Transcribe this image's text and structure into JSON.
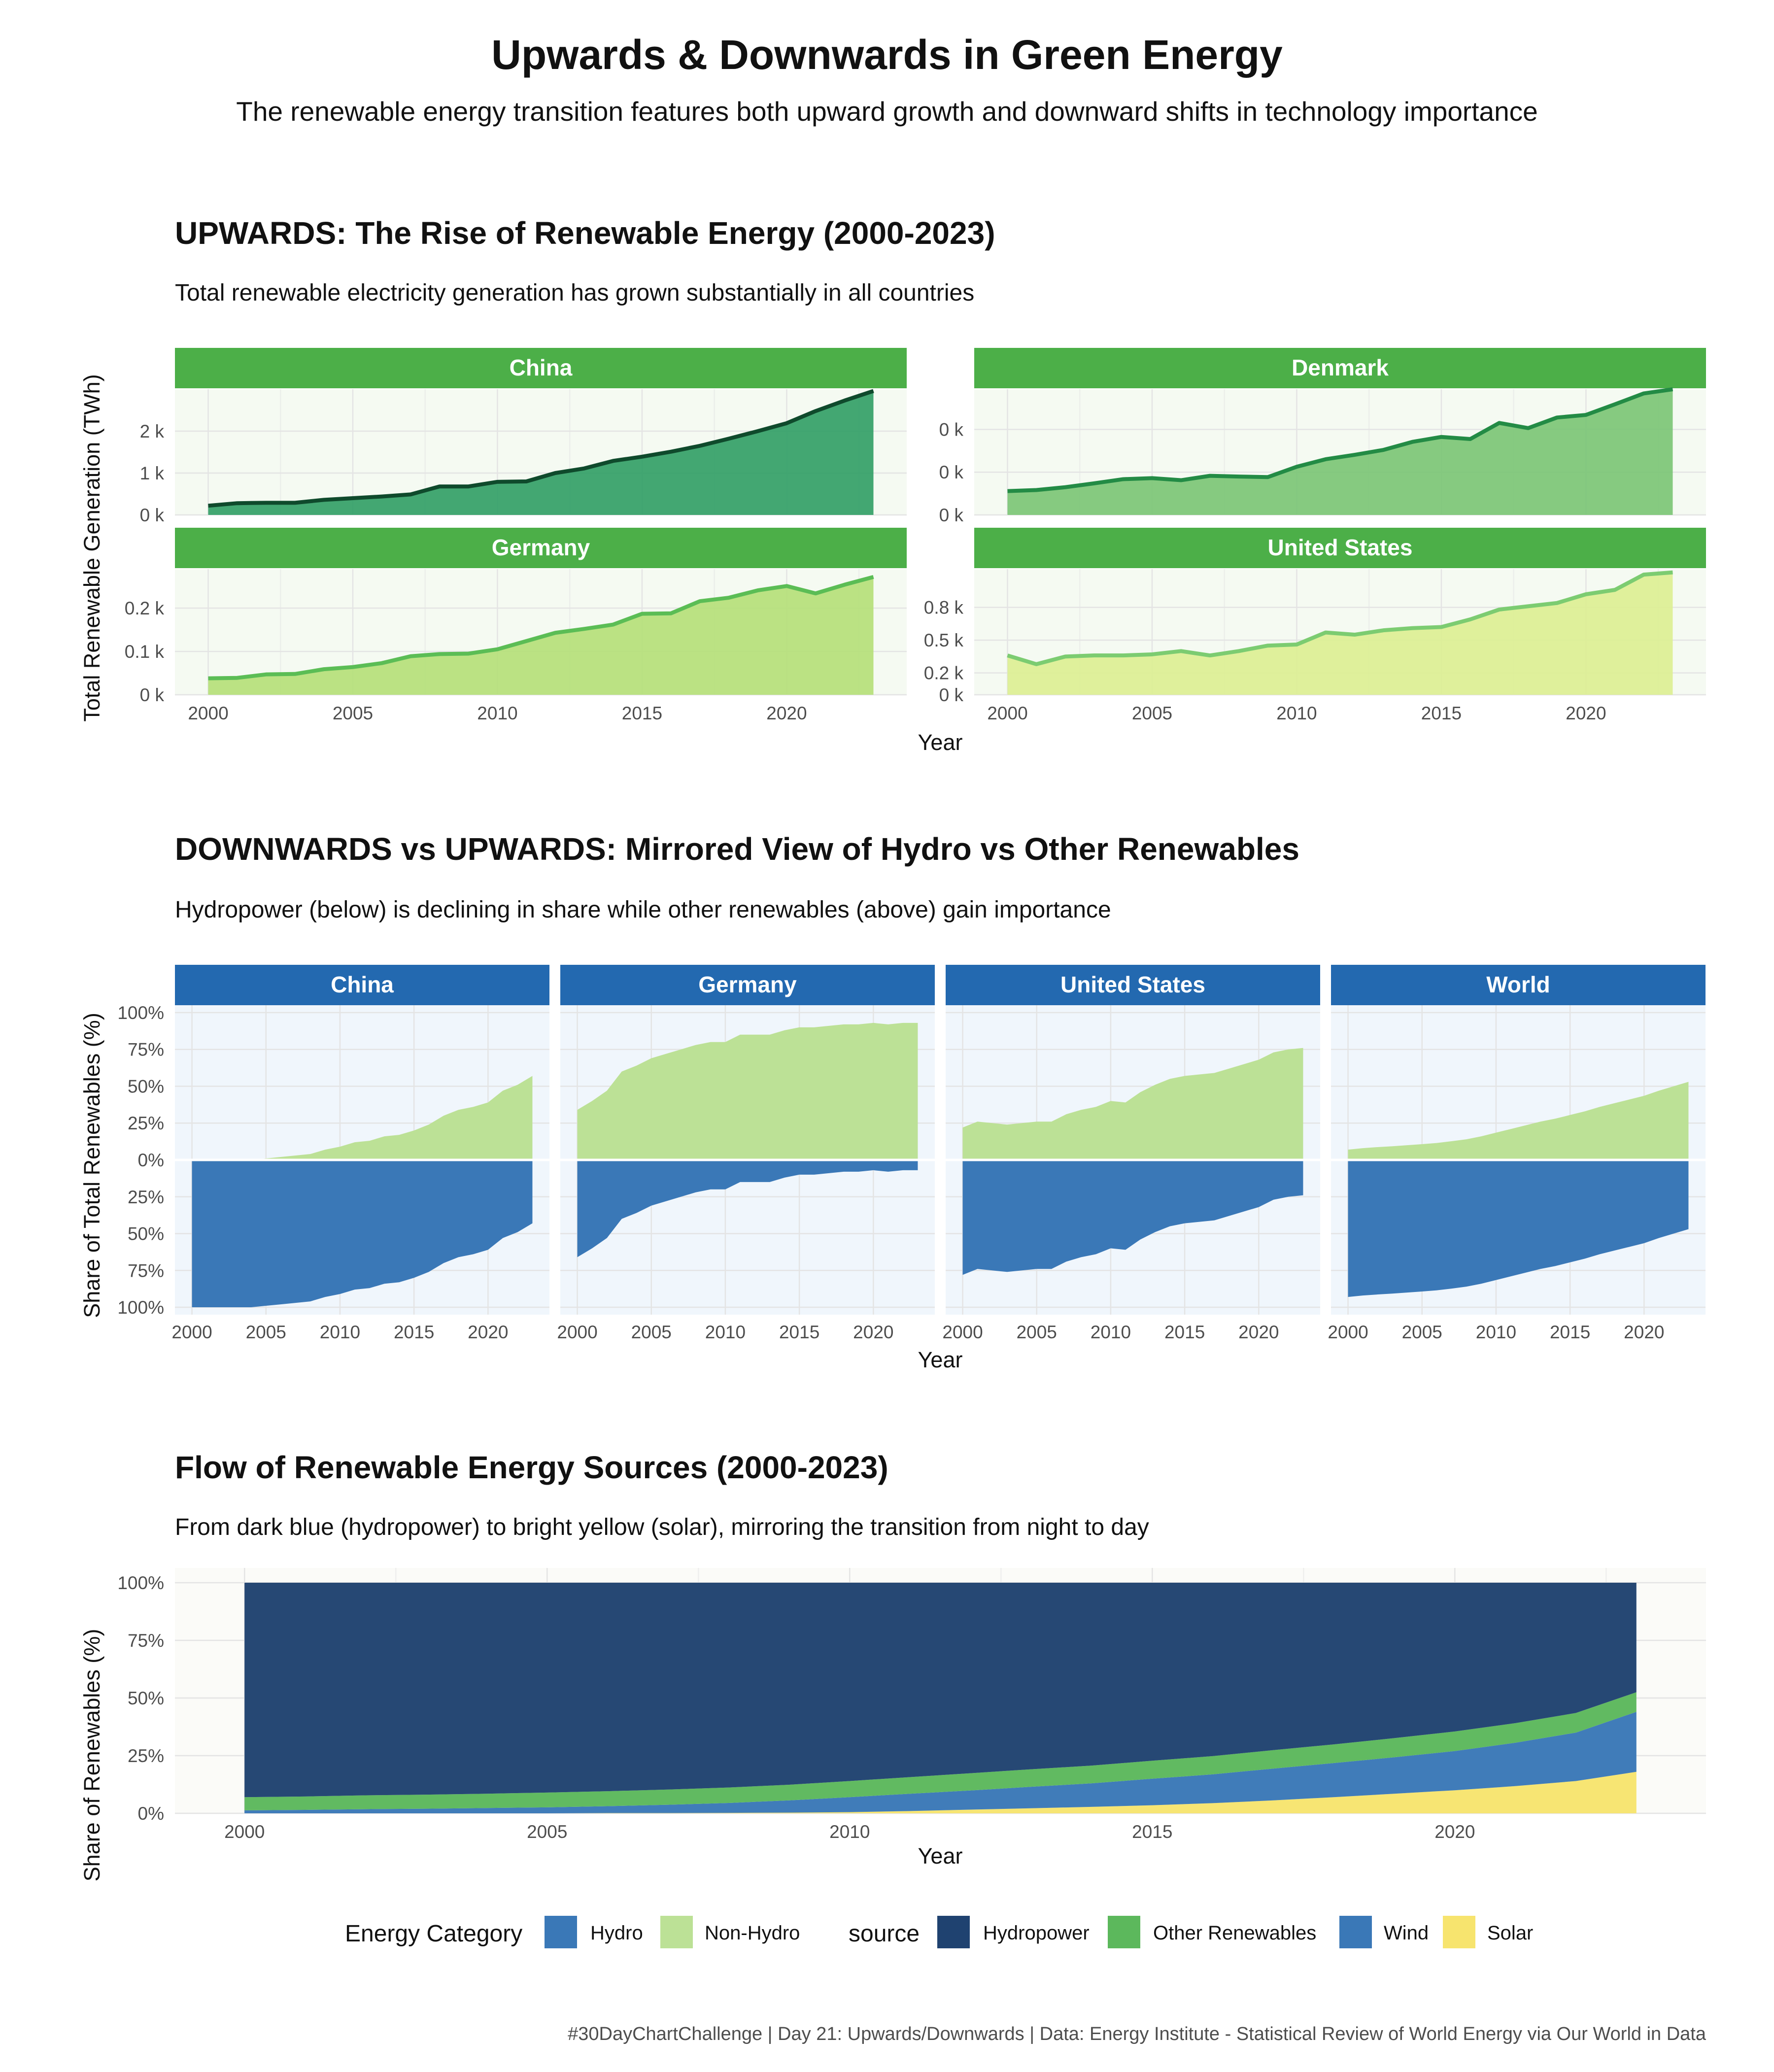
{
  "title": "Upwards & Downwards in Green Energy",
  "subtitle": "The renewable energy transition features both upward growth and downward shifts in technology importance",
  "caption": "#30DayChartChallenge | Day 21: Upwards/Downwards | Data: Energy Institute - Statistical Review of World Energy via Our World in Data",
  "colors": {
    "strip_green": "#4caf48",
    "strip_blue": "#2369b0",
    "panel_green_bg": "#f5faf2",
    "panel_blue_bg": "#f0f6fc",
    "panel_flow_bg": "#fbfbf8",
    "hydro": "#3a78b7",
    "non_hydro": "#bce196",
    "hydropower": "#1f4270",
    "other_renewables": "#5cb85c",
    "wind": "#3a78b7",
    "solar": "#f7e46e"
  },
  "chart_data": [
    {
      "type": "area",
      "title": "UPWARDS: The Rise of Renewable Energy (2000-2023)",
      "subtitle": "Total renewable electricity generation has grown substantially in all countries",
      "xlabel": "Year",
      "ylabel": "Total Renewable Generation (TWh)",
      "x": [
        2000,
        2001,
        2002,
        2003,
        2004,
        2005,
        2006,
        2007,
        2008,
        2009,
        2010,
        2011,
        2012,
        2013,
        2014,
        2015,
        2016,
        2017,
        2018,
        2019,
        2020,
        2021,
        2022,
        2023
      ],
      "xticks": [
        "2000",
        "2005",
        "2010",
        "2015",
        "2020"
      ],
      "panels": [
        {
          "name": "China",
          "fill": "#33a067",
          "line": "#0f4a2c",
          "ylim": [
            0,
            3000
          ],
          "yticks": [
            {
              "v": 0,
              "label": "0 k"
            },
            {
              "v": 1000,
              "label": "1 k"
            },
            {
              "v": 2000,
              "label": "2 k"
            }
          ],
          "values": [
            220,
            280,
            290,
            290,
            360,
            400,
            440,
            490,
            680,
            680,
            790,
            800,
            1000,
            1110,
            1290,
            1390,
            1510,
            1650,
            1820,
            2000,
            2190,
            2480,
            2730,
            2960
          ]
        },
        {
          "name": "Denmark",
          "fill": "#7cc576",
          "line": "#238b45",
          "ylim": [
            0,
            0.0485
          ],
          "yticks": [
            {
              "v": 0,
              "label": "0 k"
            },
            {
              "v": 0.0165,
              "label": "0 k"
            },
            {
              "v": 0.033,
              "label": "0 k"
            }
          ],
          "values": [
            0.0092,
            0.0096,
            0.0107,
            0.0122,
            0.0138,
            0.0142,
            0.0134,
            0.0151,
            0.0148,
            0.0146,
            0.0186,
            0.0215,
            0.0232,
            0.0251,
            0.0282,
            0.0301,
            0.0293,
            0.0355,
            0.0335,
            0.0376,
            0.0386,
            0.0427,
            0.0469,
            0.0485
          ]
        },
        {
          "name": "Germany",
          "fill": "#b5e07a",
          "line": "#5bbd55",
          "ylim": [
            0,
            0.29
          ],
          "yticks": [
            {
              "v": 0,
              "label": "0 k"
            },
            {
              "v": 0.1,
              "label": "0.1 k"
            },
            {
              "v": 0.2,
              "label": "0.2 k"
            }
          ],
          "values": [
            0.038,
            0.039,
            0.047,
            0.048,
            0.059,
            0.064,
            0.073,
            0.089,
            0.094,
            0.095,
            0.105,
            0.124,
            0.143,
            0.152,
            0.162,
            0.187,
            0.188,
            0.216,
            0.224,
            0.241,
            0.251,
            0.234,
            0.254,
            0.272
          ]
        },
        {
          "name": "United States",
          "fill": "#dcef94",
          "line": "#7ccc71",
          "ylim": [
            0,
            1.15
          ],
          "yticks": [
            {
              "v": 0,
              "label": "0 k"
            },
            {
              "v": 0.2,
              "label": "0.2 k"
            },
            {
              "v": 0.5,
              "label": "0.5 k"
            },
            {
              "v": 0.8,
              "label": "0.8 k"
            }
          ],
          "values": [
            0.36,
            0.28,
            0.35,
            0.36,
            0.36,
            0.37,
            0.4,
            0.36,
            0.4,
            0.45,
            0.46,
            0.57,
            0.55,
            0.59,
            0.61,
            0.62,
            0.69,
            0.78,
            0.81,
            0.84,
            0.92,
            0.96,
            1.1,
            1.12
          ]
        }
      ]
    },
    {
      "type": "area",
      "title": "DOWNWARDS vs UPWARDS: Mirrored View of Hydro vs Other Renewables",
      "subtitle": "Hydropower (below) is declining in share while other renewables (above) gain importance",
      "xlabel": "Year",
      "ylabel": "Share of Total Renewables (%)",
      "ylim": [
        -105,
        105
      ],
      "yticks": [
        {
          "v": 100,
          "label": "100%"
        },
        {
          "v": 75,
          "label": "75%"
        },
        {
          "v": 50,
          "label": "50%"
        },
        {
          "v": 25,
          "label": "25%"
        },
        {
          "v": 0,
          "label": "0%"
        },
        {
          "v": -25,
          "label": "25%"
        },
        {
          "v": -50,
          "label": "50%"
        },
        {
          "v": -75,
          "label": "75%"
        },
        {
          "v": -100,
          "label": "100%"
        }
      ],
      "x": [
        2000,
        2001,
        2002,
        2003,
        2004,
        2005,
        2006,
        2007,
        2008,
        2009,
        2010,
        2011,
        2012,
        2013,
        2014,
        2015,
        2016,
        2017,
        2018,
        2019,
        2020,
        2021,
        2022,
        2023
      ],
      "xticks": [
        "2000",
        "2005",
        "2010",
        "2015",
        "2020"
      ],
      "legend_title": "Energy Category",
      "series_names": [
        "Hydro",
        "Non-Hydro"
      ],
      "panels": [
        {
          "name": "China",
          "non_hydro": [
            0,
            0,
            0,
            0,
            0,
            1,
            2,
            3,
            4,
            7,
            9,
            12,
            13,
            16,
            17,
            20,
            24,
            30,
            34,
            36,
            39,
            47,
            51,
            57
          ],
          "hydro": [
            100,
            100,
            100,
            100,
            100,
            99,
            98,
            97,
            96,
            93,
            91,
            88,
            87,
            84,
            83,
            80,
            76,
            70,
            66,
            64,
            61,
            53,
            49,
            43
          ]
        },
        {
          "name": "Germany",
          "non_hydro": [
            34,
            40,
            47,
            60,
            64,
            69,
            72,
            75,
            78,
            80,
            80,
            85,
            85,
            85,
            88,
            90,
            90,
            91,
            92,
            92,
            93,
            92,
            93,
            93
          ],
          "hydro": [
            66,
            60,
            53,
            40,
            36,
            31,
            28,
            25,
            22,
            20,
            20,
            15,
            15,
            15,
            12,
            10,
            10,
            9,
            8,
            8,
            7,
            8,
            7,
            7
          ]
        },
        {
          "name": "United States",
          "non_hydro": [
            22,
            26,
            25,
            24,
            25,
            26,
            26,
            31,
            34,
            36,
            40,
            39,
            46,
            51,
            55,
            57,
            58,
            59,
            62,
            65,
            68,
            73,
            75,
            76
          ],
          "hydro": [
            78,
            74,
            75,
            76,
            75,
            74,
            74,
            69,
            66,
            64,
            60,
            61,
            54,
            49,
            45,
            43,
            42,
            41,
            38,
            35,
            32,
            27,
            25,
            24
          ]
        },
        {
          "name": "World",
          "non_hydro": [
            7,
            8,
            8.7,
            9.3,
            10,
            10.7,
            11.5,
            12.7,
            14,
            16,
            18.5,
            21,
            23.5,
            26,
            28,
            30.5,
            33,
            36,
            38.5,
            41,
            43.5,
            47,
            50,
            53
          ],
          "hydro": [
            93,
            92,
            91.3,
            90.7,
            90,
            89.3,
            88.5,
            87.3,
            86,
            84,
            81.5,
            79,
            76.5,
            74,
            72,
            69.5,
            67,
            64,
            61.5,
            59,
            56.5,
            53,
            50,
            47
          ]
        }
      ]
    },
    {
      "type": "area",
      "title": "Flow of Renewable Energy Sources (2000-2023)",
      "subtitle": "From dark blue (hydropower) to bright yellow (solar), mirroring the transition from night to day",
      "xlabel": "Year",
      "ylabel": "Share of Renewables (%)",
      "ylim": [
        0,
        100
      ],
      "yticks": [
        {
          "v": 0,
          "label": "0%"
        },
        {
          "v": 25,
          "label": "25%"
        },
        {
          "v": 50,
          "label": "50%"
        },
        {
          "v": 75,
          "label": "75%"
        },
        {
          "v": 100,
          "label": "100%"
        }
      ],
      "x": [
        2000,
        2001,
        2002,
        2003,
        2004,
        2005,
        2006,
        2007,
        2008,
        2009,
        2010,
        2011,
        2012,
        2013,
        2014,
        2015,
        2016,
        2017,
        2018,
        2019,
        2020,
        2021,
        2022,
        2023
      ],
      "xticks": [
        "2000",
        "2005",
        "2010",
        "2015",
        "2020"
      ],
      "legend_title": "source",
      "series": [
        {
          "name": "Solar",
          "values": [
            0,
            0,
            0,
            0,
            0,
            0,
            0.1,
            0.1,
            0.2,
            0.3,
            0.5,
            1,
            1.6,
            2.2,
            2.8,
            3.5,
            4.4,
            5.6,
            7,
            8.5,
            10,
            11.8,
            14,
            18
          ]
        },
        {
          "name": "Wind",
          "values": [
            1.3,
            1.5,
            1.8,
            2,
            2.3,
            2.6,
            3,
            3.6,
            4.3,
            5.3,
            6.5,
            7.5,
            8.3,
            9.3,
            10.2,
            11.5,
            12.5,
            13.8,
            14.8,
            15.8,
            17,
            18.8,
            21,
            26
          ]
        },
        {
          "name": "Other Renewables",
          "values": [
            5.7,
            5.8,
            6,
            6.1,
            6.2,
            6.4,
            6.5,
            6.6,
            6.7,
            6.8,
            7,
            7.2,
            7.5,
            7.6,
            7.7,
            7.8,
            7.9,
            8,
            8.1,
            8.3,
            8.5,
            8.5,
            8.5,
            8.5
          ]
        },
        {
          "name": "Hydropower",
          "values": [
            93,
            92.7,
            92.2,
            91.9,
            91.5,
            91,
            90.4,
            89.7,
            88.8,
            87.6,
            86,
            84.3,
            82.6,
            80.9,
            79.3,
            77.2,
            75.2,
            72.6,
            70.1,
            67.4,
            64.5,
            60.9,
            56.5,
            47.5
          ]
        }
      ]
    }
  ]
}
